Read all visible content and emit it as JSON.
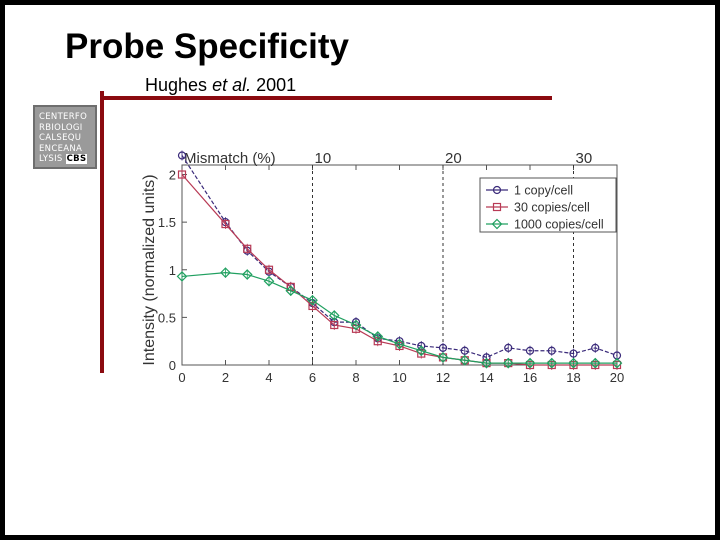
{
  "slide": {
    "title": "Probe Specificity",
    "subtitle_author": "Hughes",
    "subtitle_etal": "et al.",
    "subtitle_year": "2001"
  },
  "logo": {
    "lines": [
      "CENTERFO",
      "RBIOLOGI",
      "CALSEQU",
      "ENCEANA",
      "LYSIS"
    ],
    "badge": "CBS"
  },
  "colors": {
    "accent_bar": "#8b0a10",
    "series_1": "#3a2a7a",
    "series_30": "#b83a55",
    "series_1000": "#20a060"
  },
  "chart_data": {
    "type": "line",
    "ylabel": "Intensity (normalized units)",
    "xlim": [
      0,
      20
    ],
    "ylim": [
      0,
      2.1
    ],
    "xticks": [
      0,
      2,
      4,
      6,
      8,
      10,
      12,
      14,
      16,
      18,
      20
    ],
    "yticks": [
      0,
      0.5,
      1,
      1.5,
      2
    ],
    "ytick_labels": [
      "0",
      "0.5",
      "1",
      "1.5",
      "2"
    ],
    "grid": false,
    "legend_position": "top-right",
    "top_axis": {
      "label": "Mismatch (%)",
      "marks": [
        {
          "x": 6,
          "label": "10"
        },
        {
          "x": 12,
          "label": "20"
        },
        {
          "x": 18,
          "label": "30"
        }
      ]
    },
    "x": [
      0,
      2,
      3,
      4,
      5,
      6,
      7,
      8,
      9,
      10,
      11,
      12,
      13,
      14,
      15,
      16,
      17,
      18,
      19,
      20
    ],
    "series": [
      {
        "name": "1 copy/cell",
        "marker": "circle",
        "colorKey": "series_1",
        "values": [
          2.2,
          1.5,
          1.2,
          0.98,
          0.82,
          0.65,
          0.45,
          0.45,
          0.28,
          0.25,
          0.2,
          0.18,
          0.15,
          0.08,
          0.18,
          0.15,
          0.15,
          0.12,
          0.18,
          0.1
        ]
      },
      {
        "name": "30 copies/cell",
        "marker": "square",
        "colorKey": "series_30",
        "values": [
          2.0,
          1.48,
          1.22,
          1.0,
          0.82,
          0.62,
          0.42,
          0.38,
          0.25,
          0.2,
          0.12,
          0.08,
          0.05,
          0.02,
          0.02,
          0.0,
          0.0,
          0.0,
          0.0,
          0.0
        ]
      },
      {
        "name": "1000 copies/cell",
        "marker": "diamond",
        "colorKey": "series_1000",
        "values": [
          0.93,
          0.97,
          0.95,
          0.88,
          0.78,
          0.68,
          0.52,
          0.42,
          0.3,
          0.22,
          0.15,
          0.08,
          0.05,
          0.02,
          0.02,
          0.02,
          0.02,
          0.02,
          0.02,
          0.02
        ]
      }
    ]
  }
}
